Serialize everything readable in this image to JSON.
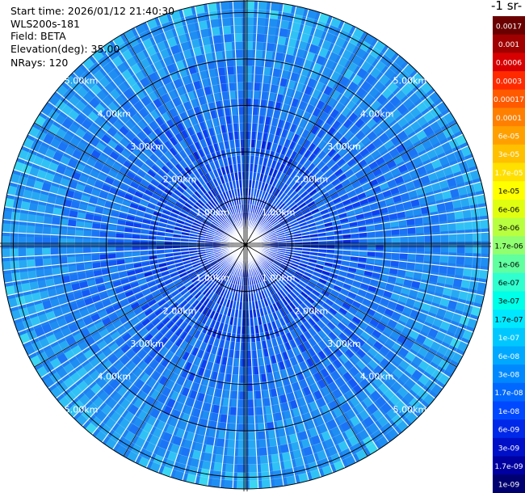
{
  "header": {
    "start_time": "Start time: 2026/01/12 21:40:30",
    "instrument": "WLS200s-181",
    "field": "Field: BETA",
    "elevation": "Elevation(deg): 35.00",
    "nrays": "NRays: 120"
  },
  "chart_data": {
    "type": "heatmap",
    "projection": "polar-ppi",
    "n_rays": 120,
    "elevation_deg": 35.0,
    "field": "BETA",
    "range_max_km": 5.25,
    "range_rings_km": [
      1,
      2,
      3,
      4,
      5
    ],
    "ring_labels": [
      "1.00km",
      "2.00km",
      "3.00km",
      "4.00km",
      "5.00km"
    ],
    "grid_lines": true,
    "colorbar": {
      "title": "-1 sr-",
      "position": "right",
      "ticks": [
        "0.0017",
        "0.001",
        "0.0006",
        "0.0003",
        "0.00017",
        "0.0001",
        "6e-05",
        "3e-05",
        "1.7e-05",
        "1e-05",
        "6e-06",
        "3e-06",
        "1.7e-06",
        "1e-06",
        "6e-07",
        "3e-07",
        "1.7e-07",
        "1e-07",
        "6e-08",
        "3e-08",
        "1.7e-08",
        "1e-08",
        "6e-09",
        "3e-09",
        "1.7e-09",
        "1e-09"
      ],
      "colors": [
        "#6a0000",
        "#a00000",
        "#d80000",
        "#ff2a00",
        "#ff5a00",
        "#ff8000",
        "#ffa000",
        "#ffc000",
        "#ffe000",
        "#ffff00",
        "#e0ff10",
        "#b8ff40",
        "#90ff70",
        "#60ffa0",
        "#30ffd0",
        "#00ffe8",
        "#00e8ff",
        "#00c8ff",
        "#00a8ff",
        "#0088ff",
        "#0068ff",
        "#0048ff",
        "#0028e8",
        "#0010c8",
        "#0000a0",
        "#000070"
      ]
    },
    "colors": {
      "background": "#1e7ff0",
      "near_range": "#0a2fe8",
      "far_range": "#2fc0f5",
      "ray_gap": "#ffffff",
      "grid": "#000000",
      "ring_label": "#ffffff"
    }
  }
}
